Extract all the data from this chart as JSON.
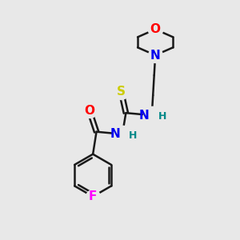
{
  "background_color": "#e8e8e8",
  "bond_color": "#1a1a1a",
  "bond_width": 1.8,
  "atom_colors": {
    "O": "#ff0000",
    "N": "#0000ee",
    "N_NH": "#008888",
    "S": "#cccc00",
    "F": "#ff00ff",
    "C": "#1a1a1a"
  },
  "font_size": 11,
  "font_size_small": 9,
  "figsize": [
    3.0,
    3.0
  ],
  "dpi": 100
}
